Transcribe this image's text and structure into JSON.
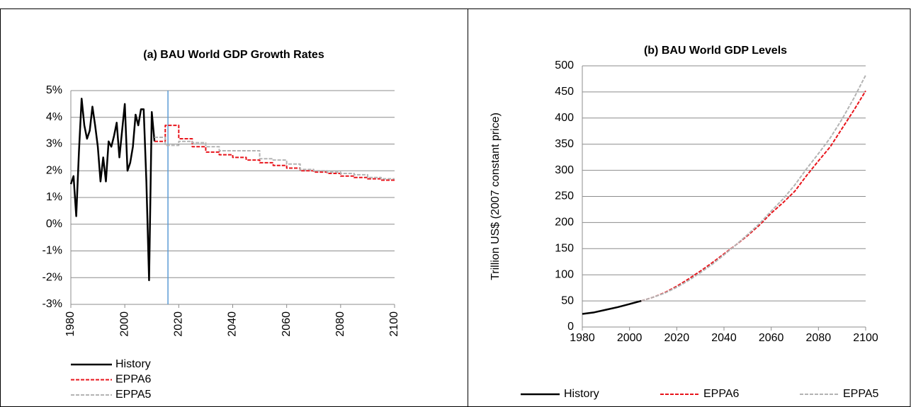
{
  "chart_data": [
    {
      "type": "line",
      "title": "(a) BAU World GDP Growth Rates",
      "xlim": [
        1980,
        2100
      ],
      "xticks": [
        1980,
        2000,
        2020,
        2040,
        2060,
        2080,
        2100
      ],
      "ylim": [
        -3,
        5
      ],
      "yticks": [
        {
          "value": -3,
          "label": "-3%"
        },
        {
          "value": -2,
          "label": "-2%"
        },
        {
          "value": -1,
          "label": "-1%"
        },
        {
          "value": 0,
          "label": "0%"
        },
        {
          "value": 1,
          "label": "1%"
        },
        {
          "value": 2,
          "label": "2%"
        },
        {
          "value": 3,
          "label": "3%"
        },
        {
          "value": 4,
          "label": "4%"
        },
        {
          "value": 5,
          "label": "5%"
        }
      ],
      "grid": true,
      "legend": "bottom",
      "vline": {
        "x": 2016,
        "color": "#5b9bd5"
      },
      "series": [
        {
          "name": "History",
          "color": "#000000",
          "line_style": "solid",
          "x": [
            1980,
            1981,
            1982,
            1983,
            1984,
            1985,
            1986,
            1987,
            1988,
            1989,
            1990,
            1991,
            1992,
            1993,
            1994,
            1995,
            1996,
            1997,
            1998,
            1999,
            2000,
            2001,
            2002,
            2003,
            2004,
            2005,
            2006,
            2007,
            2008,
            2009,
            2010,
            2011
          ],
          "values": [
            1.5,
            1.8,
            0.3,
            2.7,
            4.7,
            3.7,
            3.2,
            3.5,
            4.4,
            3.7,
            2.9,
            1.6,
            2.5,
            1.6,
            3.1,
            2.9,
            3.3,
            3.8,
            2.5,
            3.5,
            4.5,
            2.0,
            2.3,
            2.9,
            4.1,
            3.7,
            4.3,
            4.3,
            1.6,
            -2.1,
            4.2,
            3.1
          ]
        },
        {
          "name": "EPPA6",
          "color": "#e8141b",
          "line_style": "dashed",
          "x": [
            2011,
            2015,
            2015,
            2020,
            2020,
            2025,
            2025,
            2030,
            2030,
            2035,
            2035,
            2040,
            2040,
            2045,
            2045,
            2050,
            2050,
            2055,
            2055,
            2060,
            2060,
            2065,
            2065,
            2070,
            2070,
            2075,
            2075,
            2080,
            2080,
            2085,
            2085,
            2090,
            2090,
            2095,
            2095,
            2100
          ],
          "values": [
            3.1,
            3.1,
            3.7,
            3.7,
            3.2,
            3.2,
            2.9,
            2.9,
            2.7,
            2.7,
            2.6,
            2.6,
            2.5,
            2.5,
            2.4,
            2.4,
            2.3,
            2.3,
            2.2,
            2.2,
            2.1,
            2.1,
            2.0,
            2.0,
            1.95,
            1.95,
            1.9,
            1.9,
            1.8,
            1.8,
            1.75,
            1.75,
            1.7,
            1.7,
            1.65,
            1.65
          ]
        },
        {
          "name": "EPPA5",
          "color": "#b3b3b3",
          "line_style": "dashed",
          "x": [
            2011,
            2015,
            2015,
            2020,
            2020,
            2025,
            2025,
            2030,
            2030,
            2035,
            2035,
            2050,
            2050,
            2055,
            2055,
            2060,
            2060,
            2065,
            2065,
            2070,
            2070,
            2075,
            2075,
            2080,
            2080,
            2085,
            2085,
            2090,
            2090,
            2095,
            2095,
            2100
          ],
          "values": [
            3.25,
            3.25,
            2.95,
            2.95,
            3.1,
            3.1,
            3.05,
            3.05,
            2.9,
            2.9,
            2.75,
            2.75,
            2.45,
            2.45,
            2.4,
            2.4,
            2.25,
            2.25,
            2.05,
            2.05,
            2.0,
            2.0,
            1.95,
            1.95,
            1.9,
            1.9,
            1.85,
            1.85,
            1.75,
            1.75,
            1.7,
            1.7
          ]
        }
      ]
    },
    {
      "type": "line",
      "title": "(b) BAU World GDP Levels",
      "ylabel": "Trillion US$ (2007 constant price)",
      "xlim": [
        1980,
        2100
      ],
      "xticks": [
        1980,
        2000,
        2020,
        2040,
        2060,
        2080,
        2100
      ],
      "ylim": [
        0,
        500
      ],
      "yticks": [
        0,
        50,
        100,
        150,
        200,
        250,
        300,
        350,
        400,
        450,
        500
      ],
      "grid": true,
      "legend": "bottom",
      "series": [
        {
          "name": "History",
          "color": "#000000",
          "line_style": "solid",
          "x": [
            1980,
            1985,
            1990,
            1995,
            2000,
            2005
          ],
          "values": [
            25,
            28,
            33,
            38,
            44,
            50
          ]
        },
        {
          "name": "EPPA6",
          "color": "#e8141b",
          "line_style": "dashed",
          "x": [
            2005,
            2010,
            2015,
            2020,
            2025,
            2030,
            2035,
            2040,
            2045,
            2050,
            2055,
            2060,
            2065,
            2070,
            2075,
            2080,
            2085,
            2090,
            2095,
            2100
          ],
          "values": [
            50,
            57,
            66,
            78,
            92,
            107,
            123,
            140,
            157,
            175,
            195,
            218,
            238,
            260,
            290,
            318,
            345,
            380,
            415,
            452
          ]
        },
        {
          "name": "EPPA5",
          "color": "#b3b3b3",
          "line_style": "dashed",
          "x": [
            2005,
            2010,
            2015,
            2020,
            2025,
            2030,
            2035,
            2040,
            2045,
            2050,
            2055,
            2060,
            2065,
            2070,
            2075,
            2080,
            2085,
            2090,
            2095,
            2100
          ],
          "values": [
            50,
            57,
            65,
            76,
            89,
            104,
            120,
            138,
            157,
            177,
            198,
            222,
            245,
            272,
            303,
            332,
            362,
            398,
            438,
            482
          ]
        }
      ]
    }
  ]
}
